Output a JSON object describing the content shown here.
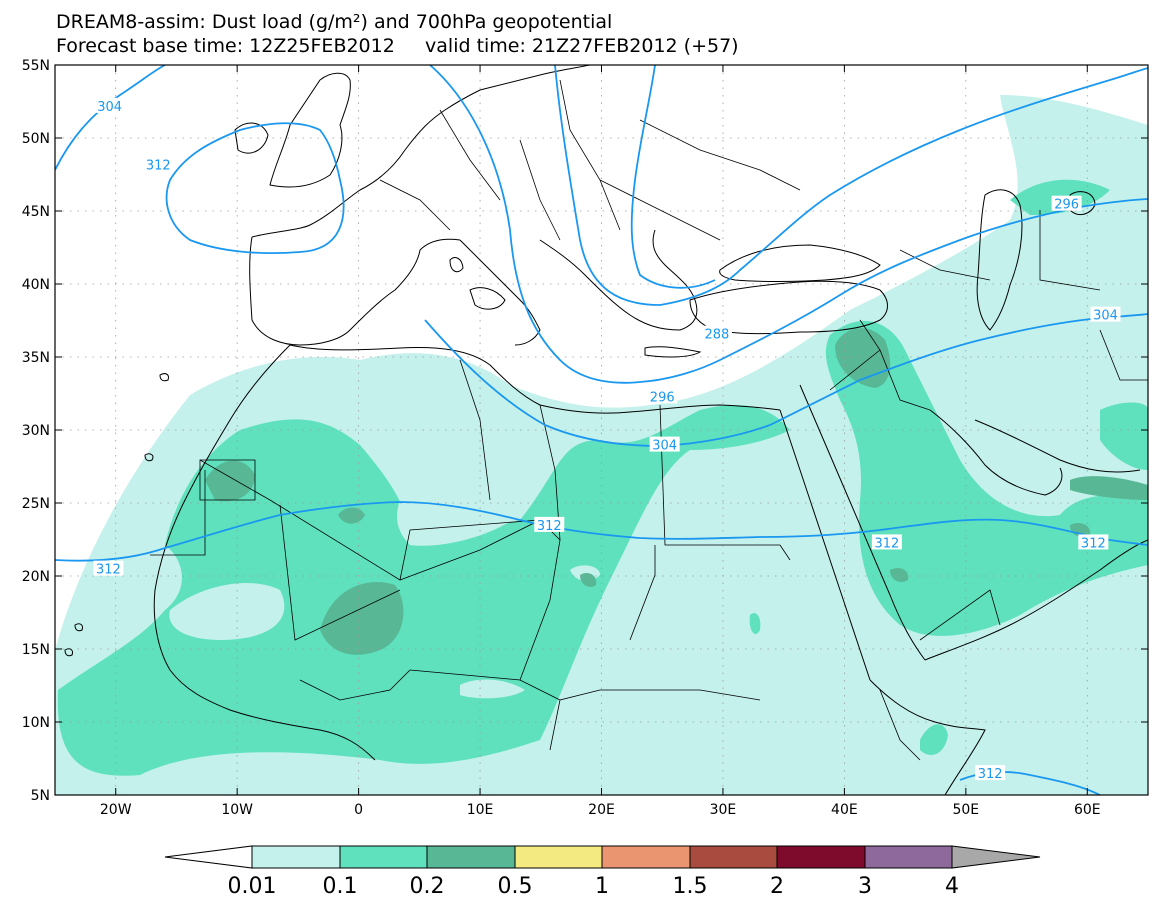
{
  "title_line1": "DREAM8-assim: Dust load (g/m²) and 700hPa geopotential",
  "title_line2": "Forecast base time: 12Z25FEB2012     valid time: 21Z27FEB2012 (+57)",
  "colors": {
    "lev1": "#c4f1ec",
    "lev2": "#5fe1bd",
    "lev3": "#58b896",
    "lev4": "#f3ea82",
    "lev5": "#ea9470",
    "lev6": "#aa4b40",
    "lev7": "#7e0a2c",
    "lev8": "#8e6a9c",
    "over": "#a8a8a8",
    "contour": "#1a98f0"
  },
  "map": {
    "lon_range": [
      -25,
      65
    ],
    "lat_range": [
      5,
      55
    ],
    "lat_ticks": [
      {
        "value": 55,
        "label": "55N"
      },
      {
        "value": 50,
        "label": "50N"
      },
      {
        "value": 45,
        "label": "45N"
      },
      {
        "value": 40,
        "label": "40N"
      },
      {
        "value": 35,
        "label": "35N"
      },
      {
        "value": 30,
        "label": "30N"
      },
      {
        "value": 25,
        "label": "25N"
      },
      {
        "value": 20,
        "label": "20N"
      },
      {
        "value": 15,
        "label": "15N"
      },
      {
        "value": 10,
        "label": "10N"
      },
      {
        "value": 5,
        "label": "5N"
      }
    ],
    "lon_ticks": [
      {
        "value": -20,
        "label": "20W"
      },
      {
        "value": -10,
        "label": "10W"
      },
      {
        "value": 0,
        "label": "0"
      },
      {
        "value": 10,
        "label": "10E"
      },
      {
        "value": 20,
        "label": "20E"
      },
      {
        "value": 30,
        "label": "30E"
      },
      {
        "value": 40,
        "label": "40E"
      },
      {
        "value": 50,
        "label": "50E"
      },
      {
        "value": 60,
        "label": "60E"
      }
    ],
    "contour_labels": [
      {
        "text": "304",
        "lon": -20.5,
        "lat": 52.2
      },
      {
        "text": "312",
        "lon": -16.5,
        "lat": 48.2
      },
      {
        "text": "296",
        "lon": 58.3,
        "lat": 45.5
      },
      {
        "text": "288",
        "lon": 29.5,
        "lat": 36.6
      },
      {
        "text": "304",
        "lon": 61.5,
        "lat": 37.9
      },
      {
        "text": "296",
        "lon": 25.0,
        "lat": 32.3
      },
      {
        "text": "304",
        "lon": 25.2,
        "lat": 29.0
      },
      {
        "text": "312",
        "lon": -20.6,
        "lat": 20.5
      },
      {
        "text": "312",
        "lon": 15.7,
        "lat": 23.5
      },
      {
        "text": "312",
        "lon": 43.5,
        "lat": 22.3
      },
      {
        "text": "312",
        "lon": 60.5,
        "lat": 22.3
      },
      {
        "text": "312",
        "lon": 52.0,
        "lat": 6.5
      }
    ]
  },
  "colorbar": {
    "labels": [
      "0.01",
      "0.1",
      "0.2",
      "0.5",
      "1",
      "1.5",
      "2",
      "3",
      "4"
    ]
  }
}
